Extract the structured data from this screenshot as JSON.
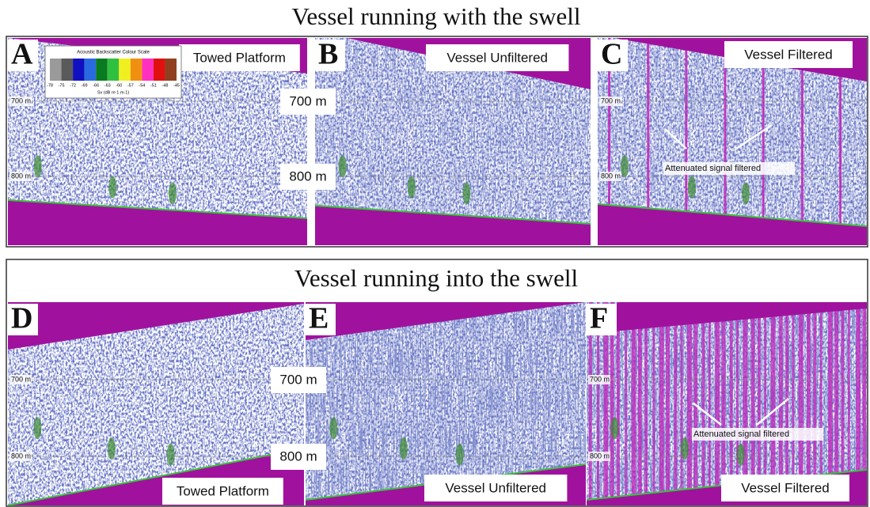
{
  "figure": {
    "sections": [
      {
        "title": "Vessel running with the swell",
        "panels": [
          {
            "letter": "A",
            "label": "Towed Platform",
            "depth_labels": [
              "700 m",
              "800 m"
            ]
          },
          {
            "letter": "B",
            "label": "Vessel Unfiltered",
            "depth_labels": [
              "700 m",
              "800 m"
            ]
          },
          {
            "letter": "C",
            "label": "Vessel Filtered",
            "depth_labels": [
              "700 m",
              "800 m"
            ],
            "annotation": "Attenuated signal filtered"
          }
        ]
      },
      {
        "title": "Vessel running into the swell",
        "panels": [
          {
            "letter": "D",
            "label": "Towed Platform",
            "depth_labels": [
              "700 m",
              "800 m"
            ]
          },
          {
            "letter": "E",
            "label": "Vessel Unfiltered",
            "depth_labels": [
              "700 m",
              "800 m"
            ]
          },
          {
            "letter": "F",
            "label": "Vessel Filtered",
            "depth_labels": [
              "700 m",
              "800 m"
            ],
            "annotation": "Attenuated signal filtered"
          }
        ]
      }
    ],
    "colour_scale": {
      "title": "Acoustic Backscatter Colour Scale",
      "ticks": [
        -78,
        -75,
        -72,
        -69,
        -66,
        -63,
        -60,
        -57,
        -54,
        -51,
        -48,
        -45
      ],
      "colors": [
        "#9a9a9a",
        "#5a5a5a",
        "#1010c0",
        "#2a6ae0",
        "#0a7a20",
        "#30c040",
        "#f0f020",
        "#f09010",
        "#ff30c0",
        "#e01010",
        "#904020"
      ],
      "unit": "Sv (dB re 1 m-1)"
    }
  }
}
